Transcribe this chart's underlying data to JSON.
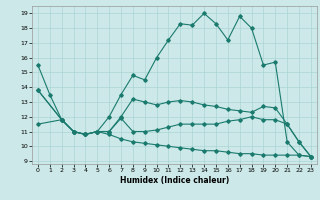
{
  "xlabel": "Humidex (Indice chaleur)",
  "background_color": "#cce8e8",
  "grid_color": "#aad4d4",
  "line_color": "#1a7a6e",
  "xlim_min": -0.5,
  "xlim_max": 23.5,
  "ylim_min": 8.8,
  "ylim_max": 19.5,
  "xticks": [
    0,
    1,
    2,
    3,
    4,
    5,
    6,
    7,
    8,
    9,
    10,
    11,
    12,
    13,
    14,
    15,
    16,
    17,
    18,
    19,
    20,
    21,
    22,
    23
  ],
  "yticks": [
    9,
    10,
    11,
    12,
    13,
    14,
    15,
    16,
    17,
    18,
    19
  ],
  "line1_x": [
    0,
    1,
    2,
    3,
    4,
    5,
    6,
    7,
    8,
    9,
    10,
    11,
    12,
    13,
    14,
    15,
    16,
    17,
    18,
    19,
    20,
    21,
    22,
    23
  ],
  "line1_y": [
    15.5,
    13.5,
    11.8,
    11.0,
    10.8,
    11.0,
    12.0,
    13.5,
    14.8,
    14.5,
    16.0,
    17.2,
    18.3,
    18.2,
    19.0,
    18.3,
    17.2,
    18.8,
    18.0,
    15.5,
    15.7,
    10.3,
    9.4,
    9.3
  ],
  "line2_x": [
    0,
    2,
    3,
    4,
    5,
    6,
    7,
    8,
    9,
    10,
    11,
    12,
    13,
    14,
    15,
    16,
    17,
    18,
    19,
    20,
    21,
    22,
    23
  ],
  "line2_y": [
    13.8,
    11.8,
    11.0,
    10.8,
    11.0,
    11.0,
    12.0,
    13.2,
    13.0,
    12.8,
    13.0,
    13.1,
    13.0,
    12.8,
    12.7,
    12.5,
    12.4,
    12.3,
    12.7,
    12.6,
    11.5,
    10.3,
    9.3
  ],
  "line3_x": [
    0,
    2,
    3,
    4,
    5,
    6,
    7,
    8,
    9,
    10,
    11,
    12,
    13,
    14,
    15,
    16,
    17,
    18,
    19,
    20,
    21,
    22,
    23
  ],
  "line3_y": [
    11.5,
    11.8,
    11.0,
    10.8,
    11.0,
    11.0,
    11.9,
    11.0,
    11.0,
    11.1,
    11.3,
    11.5,
    11.5,
    11.5,
    11.5,
    11.7,
    11.8,
    12.0,
    11.8,
    11.8,
    11.5,
    10.3,
    9.3
  ],
  "line4_x": [
    0,
    2,
    3,
    4,
    5,
    6,
    7,
    8,
    9,
    10,
    11,
    12,
    13,
    14,
    15,
    16,
    17,
    18,
    19,
    20,
    21,
    22,
    23
  ],
  "line4_y": [
    13.8,
    11.8,
    11.0,
    10.8,
    11.0,
    10.8,
    10.5,
    10.3,
    10.2,
    10.1,
    10.0,
    9.9,
    9.8,
    9.7,
    9.7,
    9.6,
    9.5,
    9.5,
    9.4,
    9.4,
    9.4,
    9.4,
    9.3
  ]
}
